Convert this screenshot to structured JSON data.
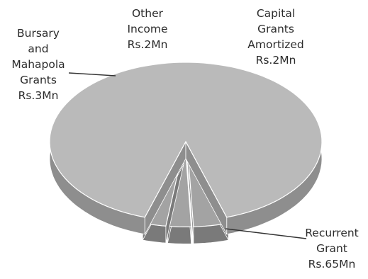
{
  "chart_data": {
    "type": "pie",
    "style": "3d-exploded",
    "colors": {
      "main_top": "#bababa",
      "main_side": "#8e8e8e",
      "small_top": "#a3a3a3",
      "small_side": "#7a7a7a",
      "edge": "#ffffff"
    },
    "slices": [
      {
        "label": [
          "Recurrent",
          "Grant",
          "Rs.65Mn"
        ],
        "value": 65
      },
      {
        "label": [
          "Bursary",
          "and",
          "Mahapola",
          "Grants",
          "Rs.3Mn"
        ],
        "value": 3
      },
      {
        "label": [
          "Other",
          "Income",
          "Rs.2Mn"
        ],
        "value": 2
      },
      {
        "label": [
          "Capital",
          "Grants",
          "Amortized",
          "Rs.2Mn"
        ],
        "value": 2
      }
    ]
  }
}
